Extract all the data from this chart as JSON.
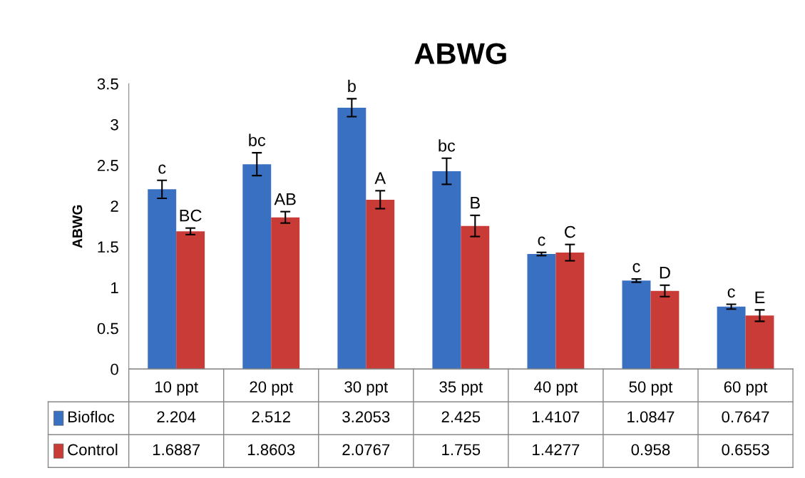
{
  "chart_data": {
    "type": "bar",
    "title": "ABWG",
    "ylabel": "ABWG",
    "categories": [
      "10 ppt",
      "20 ppt",
      "30 ppt",
      "35 ppt",
      "40 ppt",
      "50 ppt",
      "60 ppt"
    ],
    "series": [
      {
        "name": "Biofloc",
        "color": "#3a70c2",
        "values": [
          2.204,
          2.512,
          3.2053,
          2.425,
          1.4107,
          1.0847,
          0.7647
        ],
        "errors": [
          0.11,
          0.14,
          0.11,
          0.16,
          0.02,
          0.02,
          0.03
        ]
      },
      {
        "name": "Control",
        "color": "#c83b36",
        "values": [
          1.6887,
          1.8603,
          2.0767,
          1.755,
          1.4277,
          0.958,
          0.6553
        ],
        "errors": [
          0.04,
          0.07,
          0.11,
          0.13,
          0.1,
          0.07,
          0.07
        ]
      }
    ],
    "ylim": [
      0,
      3.5
    ],
    "yticks": [
      0,
      0.5,
      1,
      1.5,
      2,
      2.5,
      3,
      3.5
    ],
    "data_labels": true,
    "grid": false,
    "legend": "bottom",
    "annotations": [
      {
        "text": "c",
        "x": "10 ppt",
        "y": 2.204
      },
      {
        "text": "BC",
        "x": "10 ppt",
        "y": 1.6887
      },
      {
        "text": "bc",
        "x": "20 ppt",
        "y": 2.512
      },
      {
        "text": "AB",
        "x": "20 ppt",
        "y": 1.8603
      },
      {
        "text": "b",
        "x": "30 ppt",
        "y": 3.2053
      },
      {
        "text": "A",
        "x": "30 ppt",
        "y": 2.0767
      },
      {
        "text": "bc",
        "x": "35 ppt",
        "y": 2.425
      },
      {
        "text": "B",
        "x": "35 ppt",
        "y": 1.755
      },
      {
        "text": "c",
        "x": "40 ppt",
        "y": 1.4107
      },
      {
        "text": "C",
        "x": "40 ppt",
        "y": 1.4277
      },
      {
        "text": "c",
        "x": "50 ppt",
        "y": 1.0847
      },
      {
        "text": "D",
        "x": "50 ppt",
        "y": 0.958
      },
      {
        "text": "c",
        "x": "60 ppt",
        "y": 0.7647
      },
      {
        "text": "E",
        "x": "60 ppt",
        "y": 0.6553
      }
    ]
  }
}
